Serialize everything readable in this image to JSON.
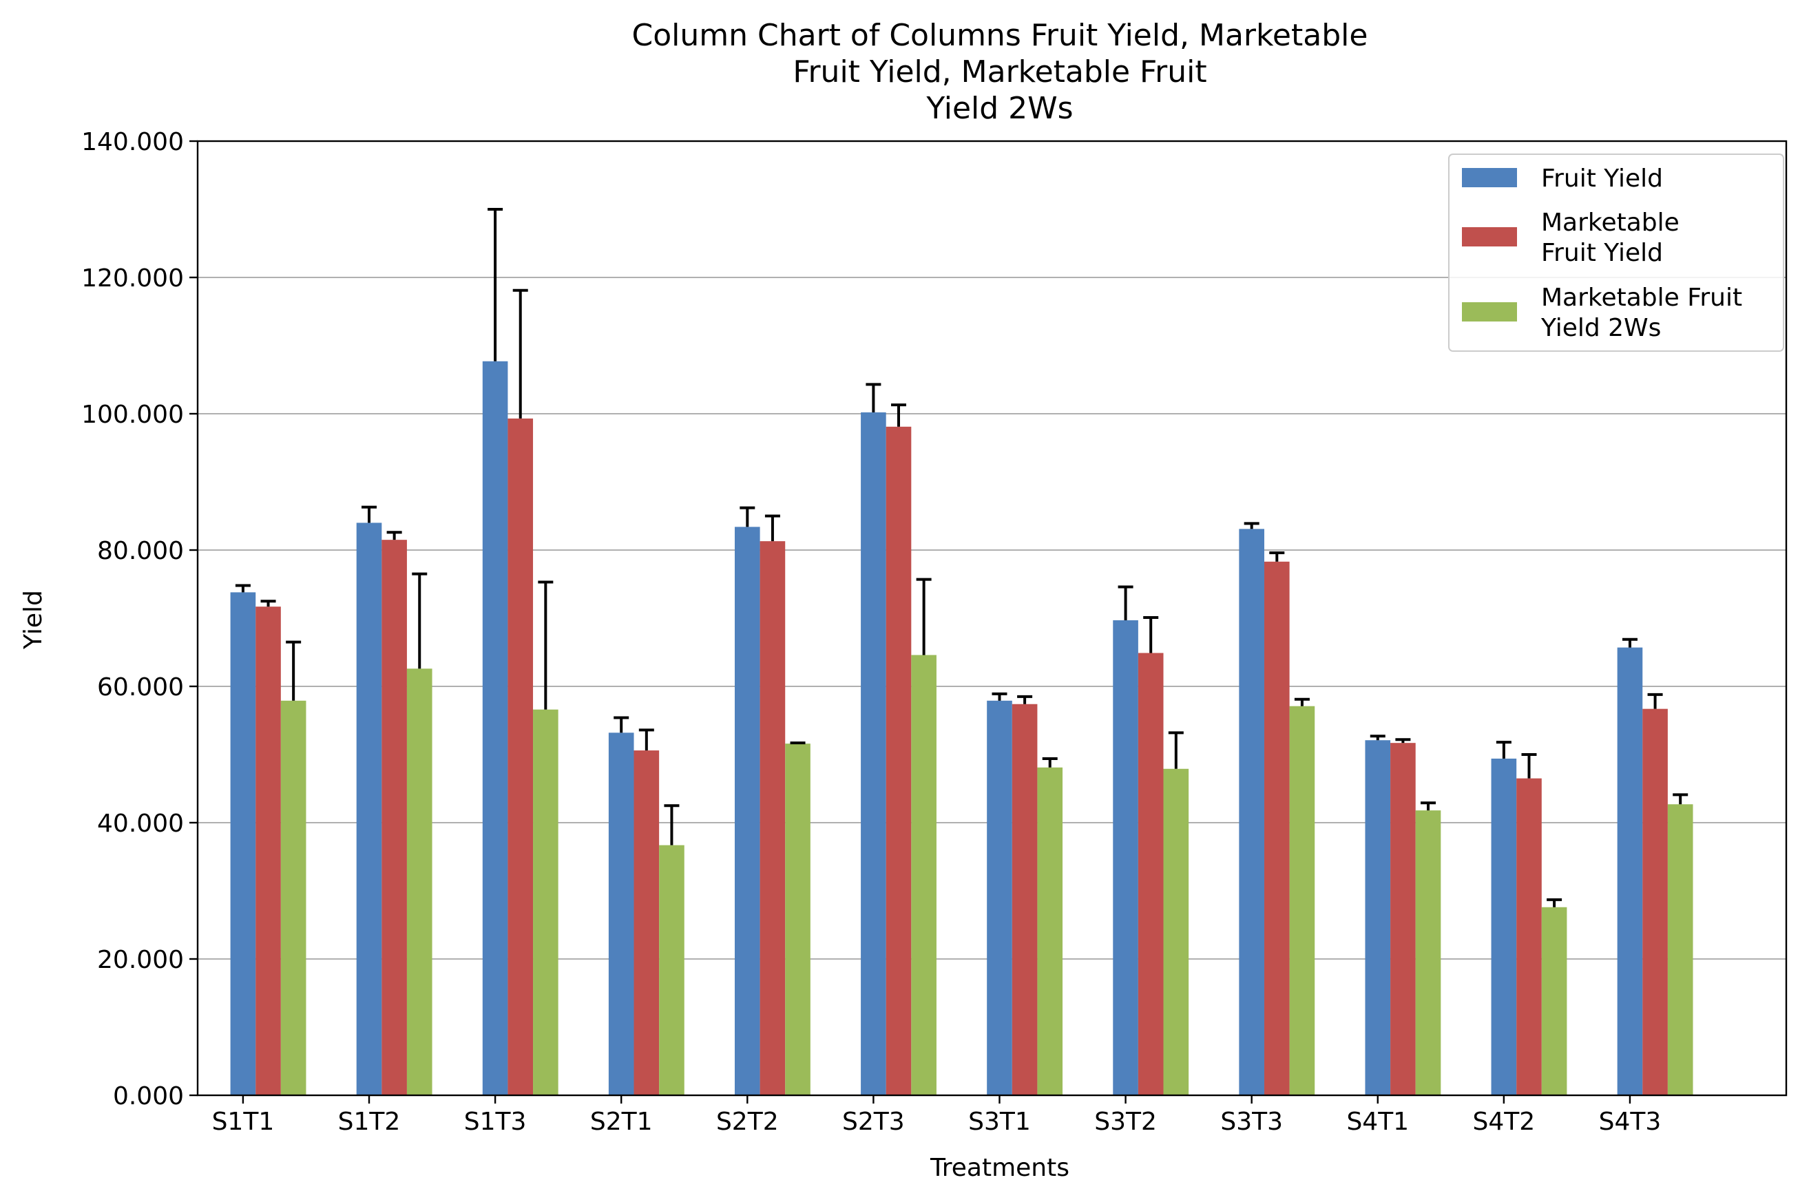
{
  "chart_data": {
    "type": "bar",
    "title_lines": [
      "Column Chart of Columns Fruit Yield, Marketable",
      "Fruit Yield, Marketable Fruit",
      "Yield 2Ws"
    ],
    "xlabel": "Treatments",
    "ylabel": "Yield",
    "ylim": [
      0,
      140
    ],
    "yticks": [
      "0.000",
      "20.000",
      "40.000",
      "60.000",
      "80.000",
      "100.000",
      "120.000",
      "140.000"
    ],
    "grid": "horizontal",
    "legend_position": "top-right",
    "categories": [
      "S1T1",
      "S1T2",
      "S1T3",
      "S2T1",
      "S2T2",
      "S2T3",
      "S3T1",
      "S3T2",
      "S3T3",
      "S4T1",
      "S4T2",
      "S4T3"
    ],
    "series": [
      {
        "name_lines": [
          "Fruit Yield"
        ],
        "color": "#4F81BD",
        "values": [
          73.8,
          84.0,
          107.7,
          53.2,
          83.4,
          100.2,
          57.9,
          69.7,
          83.1,
          52.1,
          49.4,
          65.7
        ],
        "errors": [
          1.0,
          2.3,
          22.3,
          2.2,
          2.8,
          4.1,
          1.0,
          4.9,
          0.8,
          0.6,
          2.4,
          1.2
        ]
      },
      {
        "name_lines": [
          "Marketable",
          "Fruit Yield"
        ],
        "color": "#C0504D",
        "values": [
          71.7,
          81.5,
          99.3,
          50.6,
          81.3,
          98.1,
          57.4,
          64.9,
          78.3,
          51.7,
          46.5,
          56.7
        ],
        "errors": [
          0.8,
          1.1,
          18.8,
          3.0,
          3.7,
          3.2,
          1.1,
          5.2,
          1.3,
          0.5,
          3.5,
          2.1
        ]
      },
      {
        "name_lines": [
          "Marketable Fruit",
          "Yield 2Ws"
        ],
        "color": "#9BBB59",
        "values": [
          57.9,
          62.6,
          56.6,
          36.7,
          51.6,
          64.6,
          48.1,
          47.9,
          57.1,
          41.8,
          27.6,
          42.7
        ],
        "errors": [
          8.6,
          13.9,
          18.7,
          5.8,
          0.1,
          11.1,
          1.3,
          5.3,
          1.0,
          1.1,
          1.1,
          1.4
        ]
      }
    ]
  }
}
